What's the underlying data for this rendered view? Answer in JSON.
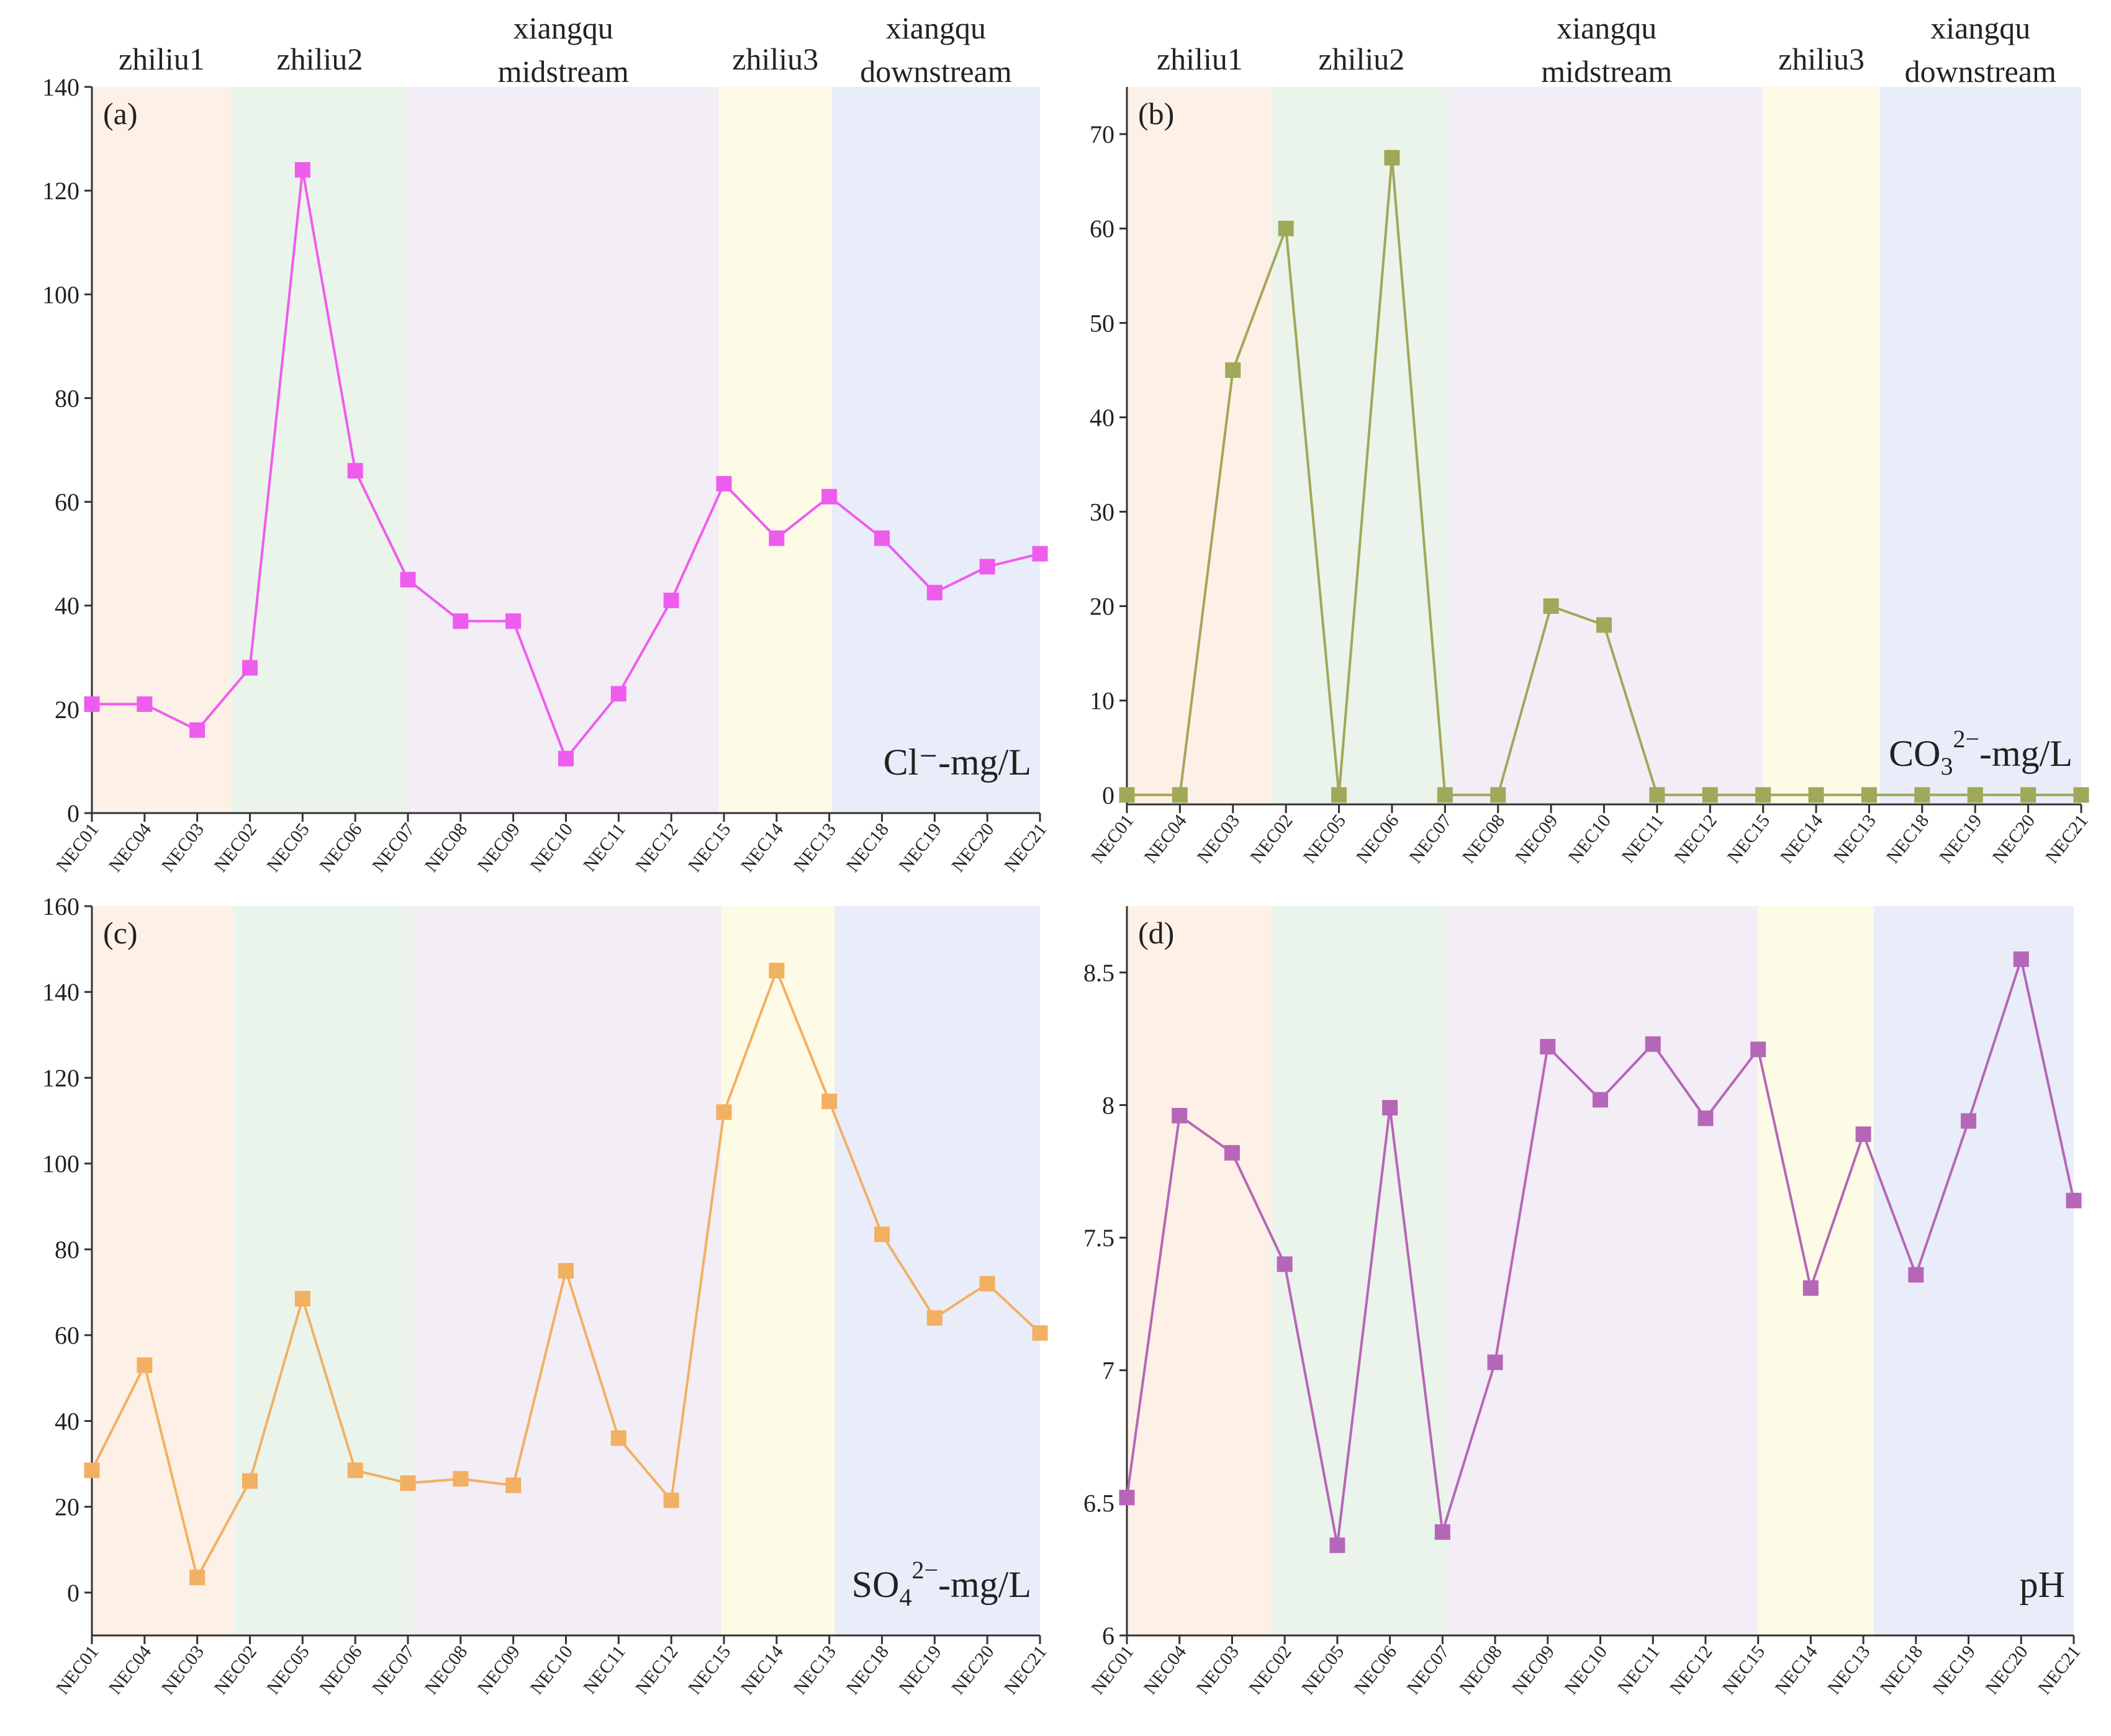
{
  "figure": {
    "background": "#ffffff"
  },
  "region_colors": {
    "zhiliu1": "#fdf0e6",
    "zhiliu2": "#eaf4ea",
    "xiangqu_midstream": "#f3edf5",
    "zhiliu3": "#fdfbe6",
    "xiangqu_downstream": "#e9edf9"
  },
  "chart_data": [
    {
      "type": "line",
      "panel_label": "(a)",
      "unit_label": "Cl⁻-mg/L",
      "color": "#ee5cee",
      "categories": [
        "NEC01",
        "NEC04",
        "NEC03",
        "NEC02",
        "NEC05",
        "NEC06",
        "NEC07",
        "NEC08",
        "NEC09",
        "NEC10",
        "NEC11",
        "NEC12",
        "NEC15",
        "NEC14",
        "NEC13",
        "NEC18",
        "NEC19",
        "NEC20",
        "NEC21"
      ],
      "values": [
        21,
        21,
        16,
        28,
        124,
        66,
        45,
        37,
        37,
        10.5,
        23,
        41,
        63.5,
        53,
        61,
        53,
        42.5,
        47.5,
        50
      ],
      "ylim": [
        0,
        140
      ],
      "yticks": [
        0,
        20,
        40,
        60,
        80,
        100,
        120,
        140
      ],
      "regions": [
        {
          "name": "zhiliu1",
          "line1": "zhiliu1",
          "line2": "",
          "start": 0,
          "end": 2.65
        },
        {
          "name": "zhiliu2",
          "line1": "zhiliu2",
          "line2": "",
          "start": 2.65,
          "end": 6
        },
        {
          "name": "xiangqu_midstream",
          "line1": "xiangqu",
          "line2": "midstream",
          "start": 6,
          "end": 11.9
        },
        {
          "name": "zhiliu3",
          "line1": "zhiliu3",
          "line2": "",
          "start": 11.9,
          "end": 14.05
        },
        {
          "name": "xiangqu_downstream",
          "line1": "xiangqu",
          "line2": "downstream",
          "start": 14.05,
          "end": 18
        }
      ]
    },
    {
      "type": "line",
      "panel_label": "(b)",
      "unit_main": "CO",
      "unit_sub": "3",
      "unit_sup": "2−",
      "unit_tail": "-mg/L",
      "color": "#a0a85a",
      "categories": [
        "NEC01",
        "NEC04",
        "NEC03",
        "NEC02",
        "NEC05",
        "NEC06",
        "NEC07",
        "NEC08",
        "NEC09",
        "NEC10",
        "NEC11",
        "NEC12",
        "NEC15",
        "NEC14",
        "NEC13",
        "NEC18",
        "NEC19",
        "NEC20",
        "NEC21"
      ],
      "values": [
        0,
        0,
        45,
        60,
        0,
        67.5,
        0,
        0,
        20,
        18,
        0,
        0,
        0,
        0,
        0,
        0,
        0,
        0,
        0
      ],
      "ylim": [
        -1,
        75
      ],
      "yticks": [
        0,
        10,
        20,
        30,
        40,
        50,
        60,
        70
      ],
      "regions": [
        {
          "name": "zhiliu1",
          "line1": "zhiliu1",
          "line2": "",
          "start": 0,
          "end": 2.75
        },
        {
          "name": "zhiliu2",
          "line1": "zhiliu2",
          "line2": "",
          "start": 2.75,
          "end": 6.1
        },
        {
          "name": "xiangqu_midstream",
          "line1": "xiangqu",
          "line2": "midstream",
          "start": 6.1,
          "end": 12
        },
        {
          "name": "zhiliu3",
          "line1": "zhiliu3",
          "line2": "",
          "start": 12,
          "end": 14.2
        },
        {
          "name": "xiangqu_downstream",
          "line1": "xiangqu",
          "line2": "downstream",
          "start": 14.2,
          "end": 18
        }
      ]
    },
    {
      "type": "line",
      "panel_label": "(c)",
      "unit_main": "SO",
      "unit_sub": "4",
      "unit_sup": "2−",
      "unit_tail": "-mg/L",
      "color": "#f2b062",
      "categories": [
        "NEC01",
        "NEC04",
        "NEC03",
        "NEC02",
        "NEC05",
        "NEC06",
        "NEC07",
        "NEC08",
        "NEC09",
        "NEC10",
        "NEC11",
        "NEC12",
        "NEC15",
        "NEC14",
        "NEC13",
        "NEC18",
        "NEC19",
        "NEC20",
        "NEC21"
      ],
      "values": [
        28.5,
        53,
        3.5,
        26,
        68.5,
        28.5,
        25.5,
        26.5,
        25,
        75,
        36,
        21.5,
        112,
        145,
        114.5,
        83.5,
        64,
        72,
        60.5
      ],
      "ylim": [
        -10,
        160
      ],
      "yticks": [
        0,
        20,
        40,
        60,
        80,
        100,
        120,
        140,
        160
      ],
      "regions": [
        {
          "name": "zhiliu1",
          "line1": "",
          "line2": "",
          "start": 0,
          "end": 2.7
        },
        {
          "name": "zhiliu2",
          "line1": "",
          "line2": "",
          "start": 2.7,
          "end": 6.1
        },
        {
          "name": "xiangqu_midstream",
          "line1": "",
          "line2": "",
          "start": 6.1,
          "end": 11.95
        },
        {
          "name": "zhiliu3",
          "line1": "",
          "line2": "",
          "start": 11.95,
          "end": 14.1
        },
        {
          "name": "xiangqu_downstream",
          "line1": "",
          "line2": "",
          "start": 14.1,
          "end": 18
        }
      ]
    },
    {
      "type": "line",
      "panel_label": "(d)",
      "unit_label": "pH",
      "color": "#b666b8",
      "categories": [
        "NEC01",
        "NEC04",
        "NEC03",
        "NEC02",
        "NEC05",
        "NEC06",
        "NEC07",
        "NEC08",
        "NEC09",
        "NEC10",
        "NEC11",
        "NEC12",
        "NEC15",
        "NEC14",
        "NEC13",
        "NEC18",
        "NEC19",
        "NEC20",
        "NEC21"
      ],
      "values": [
        6.52,
        7.96,
        7.82,
        7.4,
        6.34,
        7.99,
        6.39,
        7.03,
        8.22,
        8.02,
        8.23,
        7.95,
        8.21,
        7.31,
        7.89,
        7.36,
        7.94,
        8.55,
        7.64
      ],
      "ylim": [
        6.0,
        8.75
      ],
      "yticks": [
        6.0,
        6.5,
        7.0,
        7.5,
        8.0,
        8.5
      ],
      "regions": [
        {
          "name": "zhiliu1",
          "line1": "",
          "line2": "",
          "start": 0,
          "end": 2.75
        },
        {
          "name": "zhiliu2",
          "line1": "",
          "line2": "",
          "start": 2.75,
          "end": 6.1
        },
        {
          "name": "xiangqu_midstream",
          "line1": "",
          "line2": "",
          "start": 6.1,
          "end": 12
        },
        {
          "name": "zhiliu3",
          "line1": "",
          "line2": "",
          "start": 12,
          "end": 14.2
        },
        {
          "name": "xiangqu_downstream",
          "line1": "",
          "line2": "",
          "start": 14.2,
          "end": 18
        }
      ]
    }
  ]
}
